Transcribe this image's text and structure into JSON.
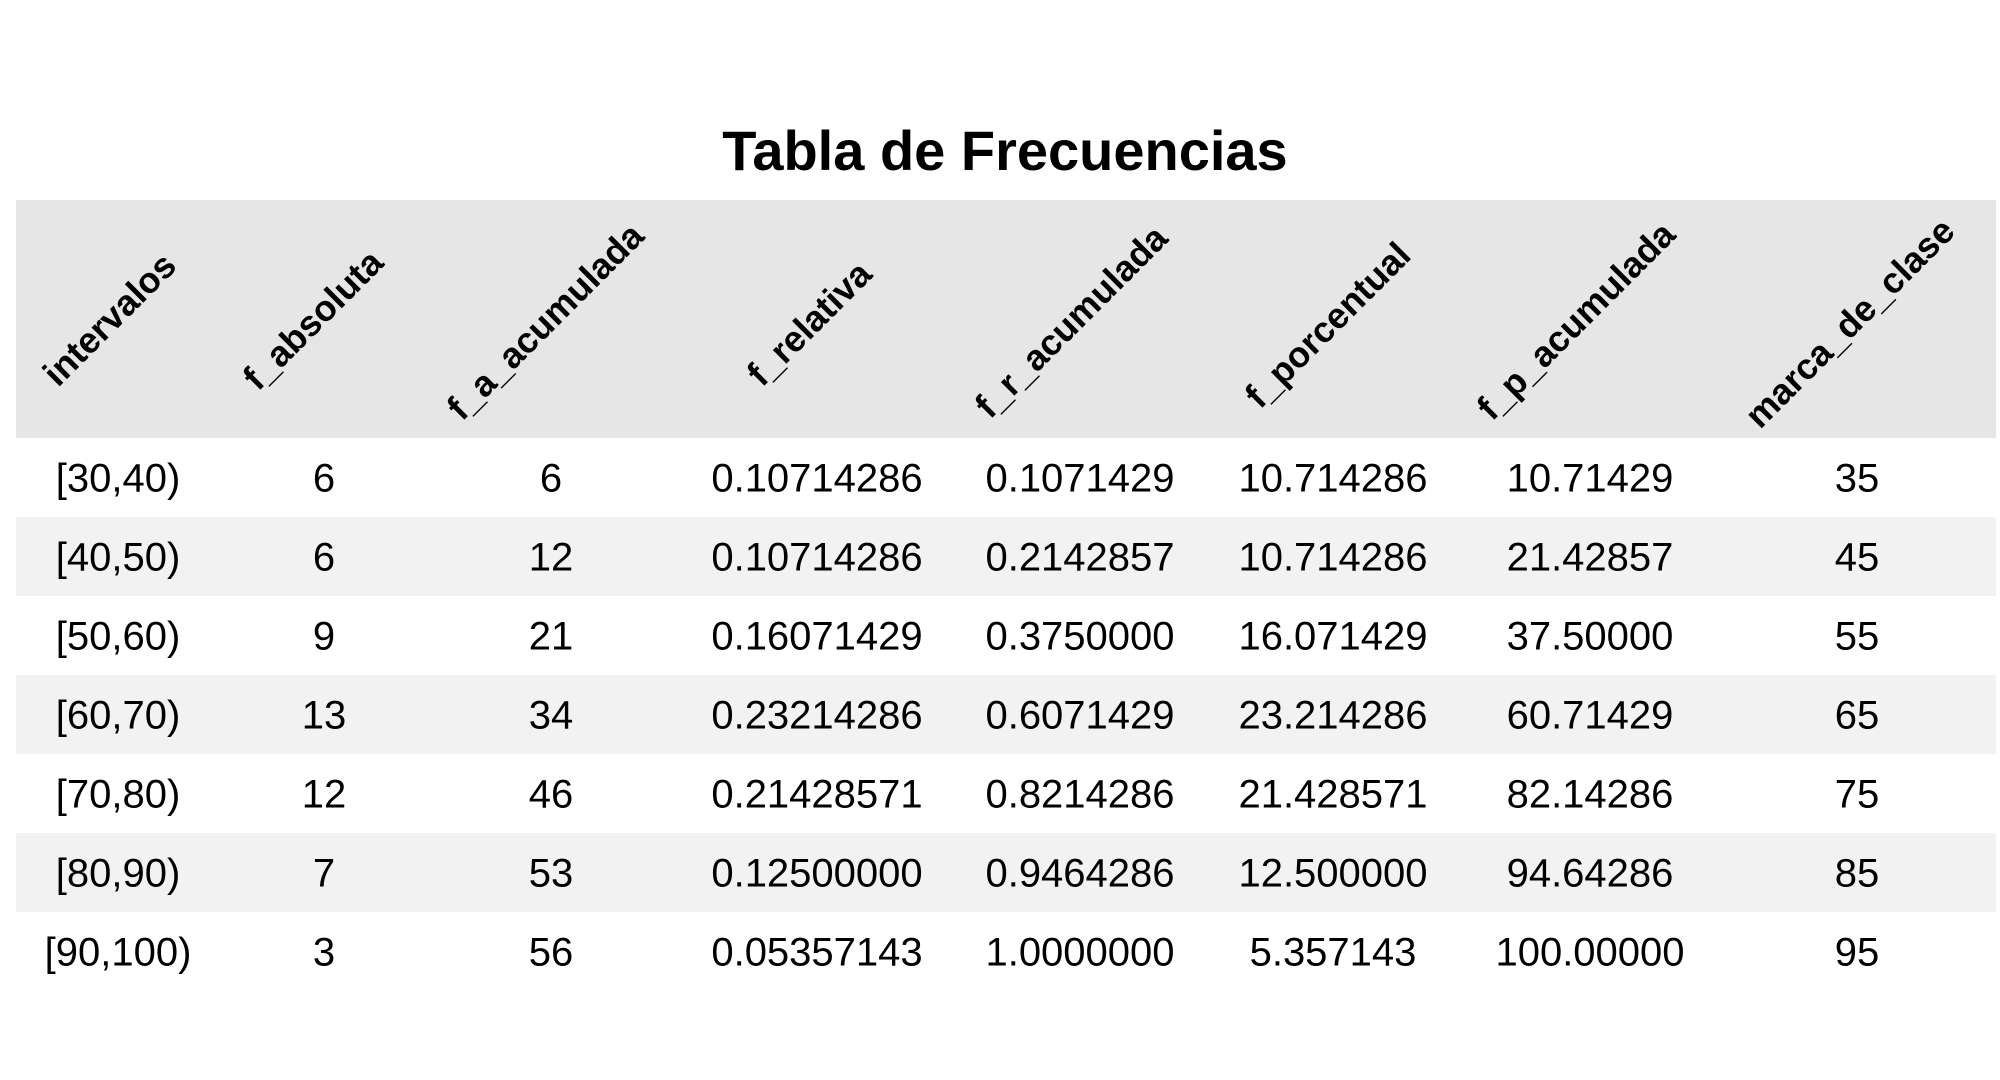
{
  "chart_data": {
    "type": "table",
    "title": "Tabla de Frecuencias",
    "columns": [
      "intervalos",
      "f_absoluta",
      "f_a_acumulada",
      "f_relativa",
      "f_r_acumulada",
      "f_porcentual",
      "f_p_acumulada",
      "marca_de_clase"
    ],
    "rows": [
      [
        "[30,40)",
        "6",
        "6",
        "0.10714286",
        "0.1071429",
        "10.714286",
        "10.71429",
        "35"
      ],
      [
        "[40,50)",
        "6",
        "12",
        "0.10714286",
        "0.2142857",
        "10.714286",
        "21.42857",
        "45"
      ],
      [
        "[50,60)",
        "9",
        "21",
        "0.16071429",
        "0.3750000",
        "16.071429",
        "37.50000",
        "55"
      ],
      [
        "[60,70)",
        "13",
        "34",
        "0.23214286",
        "0.6071429",
        "23.214286",
        "60.71429",
        "65"
      ],
      [
        "[70,80)",
        "12",
        "46",
        "0.21428571",
        "0.8214286",
        "21.428571",
        "82.14286",
        "75"
      ],
      [
        "[80,90)",
        "7",
        "53",
        "0.12500000",
        "0.9464286",
        "12.500000",
        "94.64286",
        "85"
      ],
      [
        "[90,100)",
        "3",
        "56",
        "0.05357143",
        "1.0000000",
        "5.357143",
        "100.00000",
        "95"
      ]
    ],
    "colors": {
      "header_bg": "#e6e6e6",
      "stripe_bg": "#f2f2f2",
      "row_bg": "#ffffff",
      "text": "#000000"
    }
  }
}
